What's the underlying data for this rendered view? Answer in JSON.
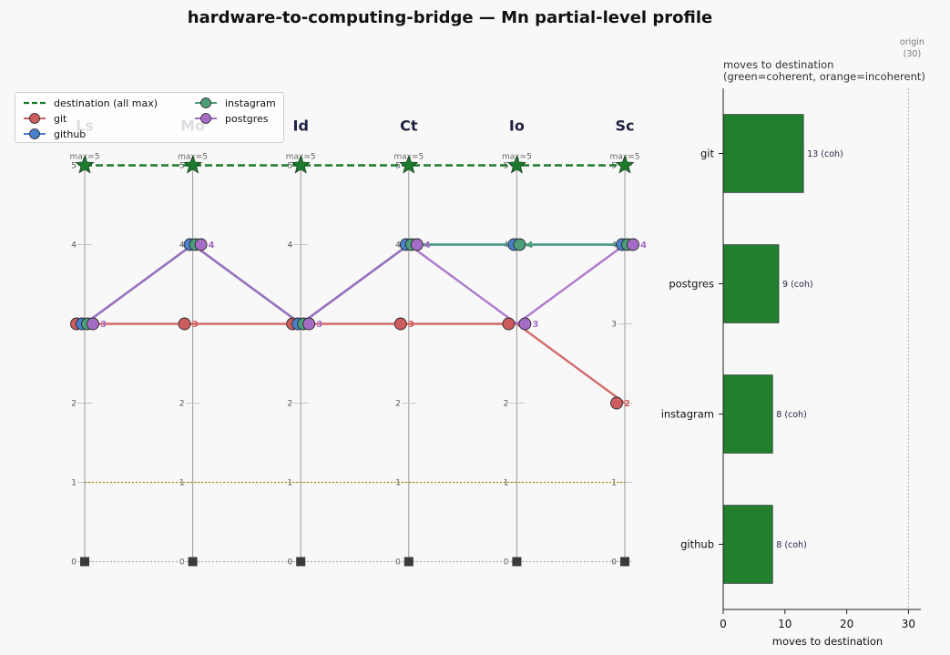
{
  "chart_data": [
    {
      "type": "line",
      "title": "hardware-to-computing-bridge — Mn partial-level profile",
      "categories": [
        "Ls",
        "Mo",
        "Id",
        "Ct",
        "Io",
        "Sc"
      ],
      "axis_max_labels": [
        "max=5",
        "max=5",
        "max=5",
        "max=5",
        "max=5",
        "max=5"
      ],
      "ylim": [
        0,
        5
      ],
      "yticks": [
        0,
        1,
        2,
        3,
        4,
        5
      ],
      "reference_lines": [
        {
          "name": "destination (all max)",
          "value": 5,
          "style": "dashed",
          "color": "#1e7b2e"
        },
        {
          "value": 1,
          "style": "dotted",
          "color": "#b8860b"
        },
        {
          "value": 0,
          "style": "dotted",
          "color": "#b0b0b0"
        }
      ],
      "series": [
        {
          "name": "git",
          "color": "#cd5c5c",
          "values": [
            3,
            3,
            3,
            3,
            3,
            2
          ]
        },
        {
          "name": "github",
          "color": "#4a7fcb",
          "values": [
            3,
            4,
            3,
            4,
            4,
            4
          ]
        },
        {
          "name": "instagram",
          "color": "#4d9e7a",
          "values": [
            3,
            4,
            3,
            4,
            4,
            4
          ]
        },
        {
          "name": "postgres",
          "color": "#a56cc6",
          "values": [
            3,
            4,
            3,
            4,
            3,
            4
          ]
        }
      ],
      "legend": {
        "placement": "top-left",
        "columns": 2,
        "order": [
          "destination (all max)",
          "instagram",
          "git",
          "postgres",
          "github"
        ]
      }
    },
    {
      "type": "bar",
      "orientation": "horizontal",
      "title": "moves to destination",
      "subtitle": "(green=coherent, orange=incoherent)",
      "categories": [
        "git",
        "postgres",
        "instagram",
        "github"
      ],
      "values": [
        13,
        9,
        8,
        8
      ],
      "value_labels": [
        "13  (coh)",
        "9  (coh)",
        "8  (coh)",
        "8  (coh)"
      ],
      "colors": {
        "coherent": "#217f2e",
        "incoherent": "#f0a030"
      },
      "xlabel": "moves to destination",
      "xlim": [
        0,
        32
      ],
      "xticks": [
        0,
        10,
        20,
        30
      ],
      "origin_value": 30,
      "origin_label": [
        "origin",
        "(30)"
      ]
    }
  ]
}
